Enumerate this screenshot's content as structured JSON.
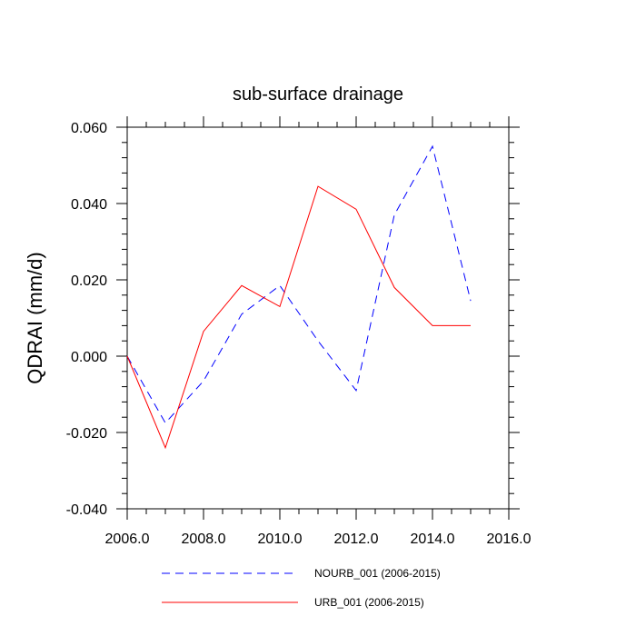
{
  "chart_data": {
    "type": "line",
    "title": "sub-surface drainage",
    "xlabel": "",
    "ylabel": "QDRAI  (mm/d)",
    "xlim": [
      2006,
      2016
    ],
    "ylim": [
      -0.04,
      0.06
    ],
    "x_ticks": [
      2006,
      2008,
      2010,
      2012,
      2014,
      2016
    ],
    "x_tick_labels": [
      "2006.0",
      "2008.0",
      "2010.0",
      "2012.0",
      "2014.0",
      "2016.0"
    ],
    "y_ticks": [
      -0.04,
      -0.02,
      0.0,
      0.02,
      0.04,
      0.06
    ],
    "y_tick_labels": [
      "-0.040",
      "-0.020",
      "0.000",
      "0.020",
      "0.040",
      "0.060"
    ],
    "x": [
      2006,
      2007,
      2008,
      2009,
      2010,
      2011,
      2012,
      2013,
      2014,
      2015
    ],
    "grid": false,
    "legend_position": "bottom",
    "series": [
      {
        "name": "NOURB_001 (2006-2015)",
        "color": "#0000ff",
        "dash": "dashed",
        "values": [
          0.0,
          -0.0175,
          -0.0065,
          0.011,
          0.0185,
          0.004,
          -0.009,
          0.037,
          0.055,
          0.0145
        ]
      },
      {
        "name": "URB_001 (2006-2015)",
        "color": "#ff0000",
        "dash": "solid",
        "values": [
          0.0,
          -0.024,
          0.0065,
          0.0185,
          0.013,
          0.0445,
          0.0385,
          0.018,
          0.008,
          0.008
        ]
      }
    ]
  }
}
